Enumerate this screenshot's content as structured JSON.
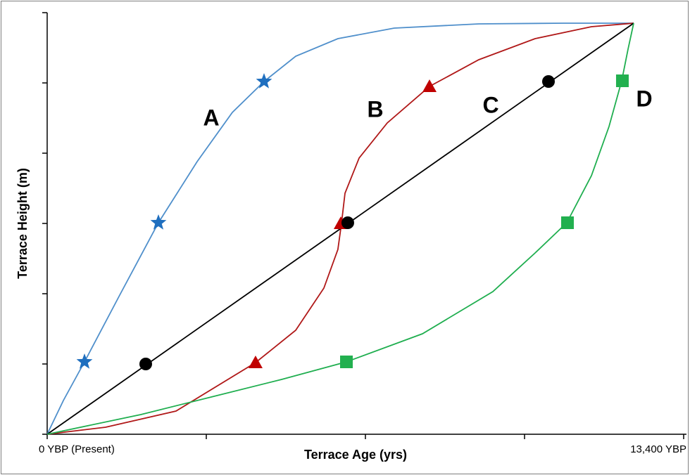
{
  "chart_data": {
    "type": "line",
    "xlabel": "Terrace Age (yrs)",
    "ylabel": "Terrace Height (m)",
    "xlim": [
      0,
      13400
    ],
    "ylim": [
      0,
      6
    ],
    "xticks": [
      {
        "value": 0,
        "label": "0 YBP (Present)"
      },
      {
        "value": 3350,
        "label": null
      },
      {
        "value": 6700,
        "label": null
      },
      {
        "value": 10050,
        "label": null
      },
      {
        "value": 13400,
        "label": "13,400 YBP"
      }
    ],
    "yticks": [
      {
        "value": 0,
        "label": null
      },
      {
        "value": 1,
        "label": null
      },
      {
        "value": 2,
        "label": null
      },
      {
        "value": 3,
        "label": null
      },
      {
        "value": 4,
        "label": null
      },
      {
        "value": 5,
        "label": null
      },
      {
        "value": 6,
        "label": null
      }
    ],
    "grid": false,
    "series": [
      {
        "name": "A",
        "color": "#4f8fcb",
        "marker_color": "#1f6fbf",
        "marker": "star",
        "x": [
          0,
          341,
          786,
          1527,
          2342,
          3157,
          3898,
          4565,
          5232,
          6121,
          7307,
          9086,
          10865,
          12348
        ],
        "values": [
          0,
          0.48,
          1.03,
          1.98,
          3.01,
          3.88,
          4.58,
          5.02,
          5.38,
          5.63,
          5.78,
          5.84,
          5.85,
          5.85
        ],
        "marker_x": [
          786,
          2342,
          4565
        ],
        "marker_values": [
          1.03,
          3.01,
          5.02
        ]
      },
      {
        "name": "B",
        "color": "#b01818",
        "marker_color": "#c00000",
        "marker": "triangle",
        "x": [
          0,
          1230,
          2713,
          4387,
          5232,
          5825,
          6121,
          6196,
          6270,
          6566,
          7159,
          8049,
          9086,
          10272,
          11458,
          12348
        ],
        "values": [
          0,
          0.1,
          0.33,
          1.02,
          1.48,
          2.08,
          2.63,
          3.0,
          3.43,
          3.93,
          4.43,
          4.95,
          5.33,
          5.63,
          5.8,
          5.85
        ],
        "marker_x": [
          4387,
          6181,
          8049
        ],
        "marker_values": [
          1.02,
          3.0,
          4.95
        ]
      },
      {
        "name": "C",
        "color": "#000000",
        "marker_color": "#000000",
        "marker": "circle",
        "x": [
          0,
          12348
        ],
        "values": [
          0,
          5.85
        ],
        "marker_x": [
          2075,
          6329,
          10554
        ],
        "marker_values": [
          1.0,
          3.01,
          5.02
        ]
      },
      {
        "name": "D",
        "color": "#1fae4f",
        "marker_color": "#22b04f",
        "marker": "square",
        "x": [
          0,
          1971,
          3454,
          4936,
          6300,
          7901,
          9383,
          10272,
          10939,
          11458,
          11829,
          12096,
          12229,
          12348
        ],
        "values": [
          0,
          0.28,
          0.53,
          0.78,
          1.03,
          1.43,
          2.03,
          2.58,
          3.01,
          3.68,
          4.38,
          5.03,
          5.48,
          5.85
        ],
        "marker_x": [
          6300,
          10954,
          12110
        ],
        "marker_values": [
          1.03,
          3.01,
          5.03
        ]
      }
    ]
  }
}
